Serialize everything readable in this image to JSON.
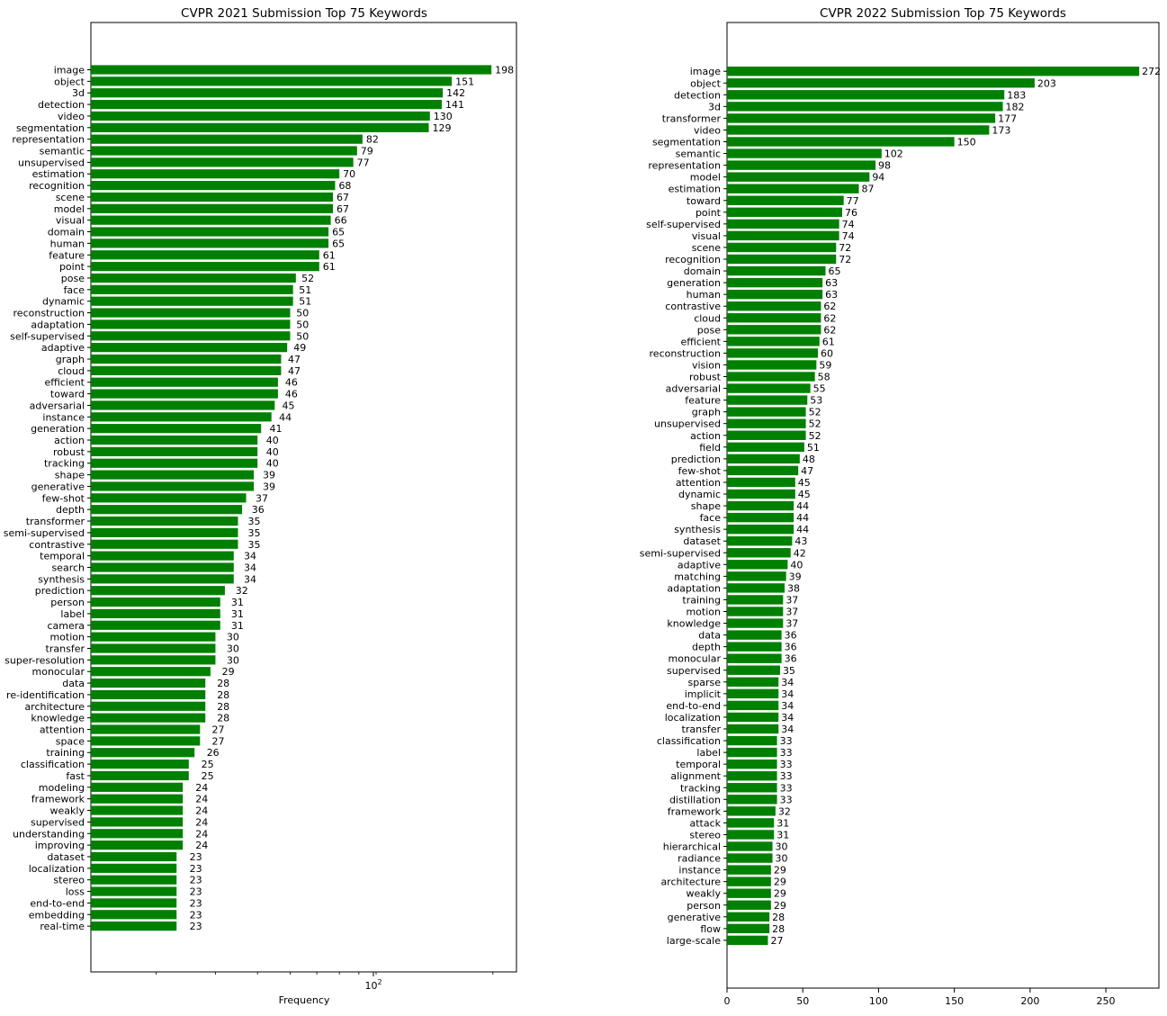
{
  "chart_data": [
    {
      "type": "bar",
      "orientation": "horizontal",
      "title": "CVPR 2021 Submission Top 75 Keywords",
      "xlabel": "Frequency",
      "ylabel": "",
      "xscale": "log",
      "xlim": [
        12.8,
        235
      ],
      "x_tick_labels": [
        {
          "value": 100,
          "base": "10",
          "exp": "2"
        }
      ],
      "bar_color": "#008000",
      "grid": false,
      "categories": [
        "image",
        "object",
        "3d",
        "detection",
        "video",
        "segmentation",
        "representation",
        "semantic",
        "unsupervised",
        "estimation",
        "recognition",
        "scene",
        "model",
        "visual",
        "domain",
        "human",
        "feature",
        "point",
        "pose",
        "face",
        "dynamic",
        "reconstruction",
        "adaptation",
        "self-supervised",
        "adaptive",
        "graph",
        "cloud",
        "efficient",
        "toward",
        "adversarial",
        "instance",
        "generation",
        "action",
        "robust",
        "tracking",
        "shape",
        "generative",
        "few-shot",
        "depth",
        "transformer",
        "semi-supervised",
        "contrastive",
        "temporal",
        "search",
        "synthesis",
        "prediction",
        "person",
        "label",
        "camera",
        "motion",
        "transfer",
        "super-resolution",
        "monocular",
        "data",
        "re-identification",
        "architecture",
        "knowledge",
        "attention",
        "space",
        "training",
        "classification",
        "fast",
        "modeling",
        "framework",
        "weakly",
        "supervised",
        "understanding",
        "improving",
        "dataset",
        "localization",
        "stereo",
        "loss",
        "end-to-end",
        "embedding",
        "real-time"
      ],
      "values": [
        198,
        151,
        142,
        141,
        130,
        129,
        82,
        79,
        77,
        70,
        68,
        67,
        67,
        66,
        65,
        65,
        61,
        61,
        52,
        51,
        51,
        50,
        50,
        50,
        49,
        47,
        47,
        46,
        46,
        45,
        44,
        41,
        40,
        40,
        40,
        39,
        39,
        37,
        36,
        35,
        35,
        35,
        34,
        34,
        34,
        32,
        31,
        31,
        31,
        30,
        30,
        30,
        29,
        28,
        28,
        28,
        28,
        27,
        27,
        26,
        25,
        25,
        24,
        24,
        24,
        24,
        24,
        24,
        23,
        23,
        23,
        23,
        23,
        23,
        23
      ]
    },
    {
      "type": "bar",
      "orientation": "horizontal",
      "title": "CVPR 2022 Submission Top 75 Keywords",
      "xlabel": "",
      "ylabel": "",
      "xscale": "linear",
      "xlim": [
        0,
        285
      ],
      "x_ticks": [
        0,
        50,
        100,
        150,
        200,
        250
      ],
      "bar_color": "#008000",
      "grid": false,
      "categories": [
        "image",
        "object",
        "detection",
        "3d",
        "transformer",
        "video",
        "segmentation",
        "semantic",
        "representation",
        "model",
        "estimation",
        "toward",
        "point",
        "self-supervised",
        "visual",
        "scene",
        "recognition",
        "domain",
        "generation",
        "human",
        "contrastive",
        "cloud",
        "pose",
        "efficient",
        "reconstruction",
        "vision",
        "robust",
        "adversarial",
        "feature",
        "graph",
        "unsupervised",
        "action",
        "field",
        "prediction",
        "few-shot",
        "attention",
        "dynamic",
        "shape",
        "face",
        "synthesis",
        "dataset",
        "semi-supervised",
        "adaptive",
        "matching",
        "adaptation",
        "training",
        "motion",
        "knowledge",
        "data",
        "depth",
        "monocular",
        "supervised",
        "sparse",
        "implicit",
        "end-to-end",
        "localization",
        "transfer",
        "classification",
        "label",
        "temporal",
        "alignment",
        "tracking",
        "distillation",
        "framework",
        "attack",
        "stereo",
        "hierarchical",
        "radiance",
        "instance",
        "architecture",
        "weakly",
        "person",
        "generative",
        "flow",
        "large-scale"
      ],
      "values": [
        272,
        203,
        183,
        182,
        177,
        173,
        150,
        102,
        98,
        94,
        87,
        77,
        76,
        74,
        74,
        72,
        72,
        65,
        63,
        63,
        62,
        62,
        62,
        61,
        60,
        59,
        58,
        55,
        53,
        52,
        52,
        52,
        51,
        48,
        47,
        45,
        45,
        44,
        44,
        44,
        43,
        42,
        40,
        39,
        38,
        37,
        37,
        37,
        36,
        36,
        36,
        35,
        34,
        34,
        34,
        34,
        34,
        33,
        33,
        33,
        33,
        33,
        33,
        32,
        31,
        31,
        30,
        30,
        29,
        29,
        29,
        29,
        28,
        28,
        27
      ]
    }
  ]
}
